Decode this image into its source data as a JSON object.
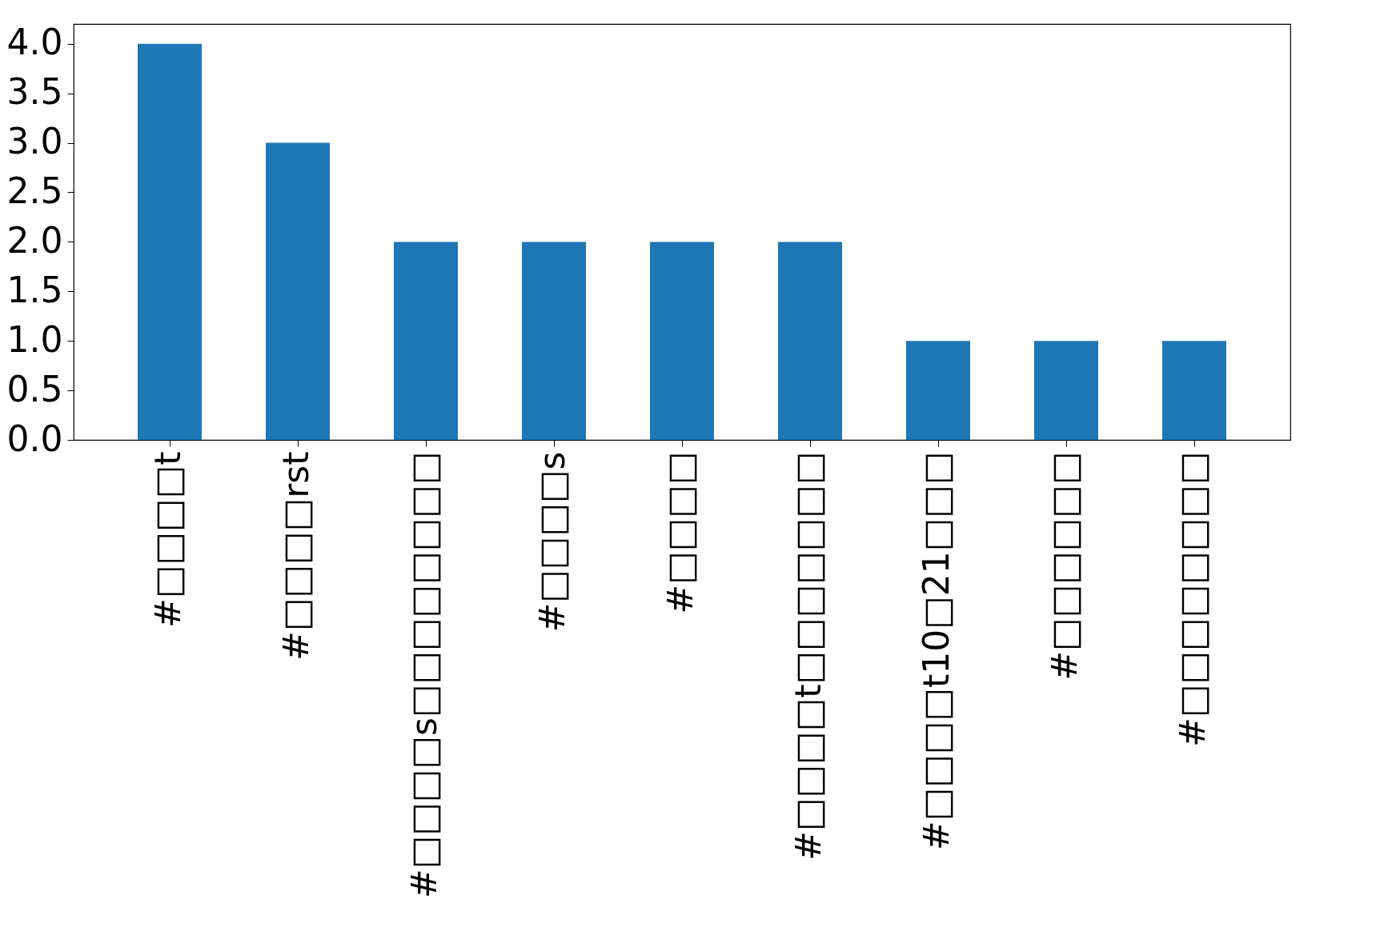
{
  "chart_data": {
    "type": "bar",
    "categories": [
      "#□□□□t",
      "#□□□□rst",
      "#□□□□s□□□□□□□□",
      "#□□□□s",
      "#□□□□",
      "#□□□□t□□□□□□□",
      "#□□□□t10□21□□□",
      "#□□□□□□",
      "#□□□□□□□□"
    ],
    "values": [
      4,
      3,
      2,
      2,
      2,
      2,
      1,
      1,
      1
    ],
    "color": "#1f77b4",
    "ylim": [
      0,
      4.2
    ],
    "yticks": [
      {
        "value": 0,
        "label": "0.0"
      },
      {
        "value": 0.5,
        "label": "0.5"
      },
      {
        "value": 1,
        "label": "1.0"
      },
      {
        "value": 1.5,
        "label": "1.5"
      },
      {
        "value": 2,
        "label": "2.0"
      },
      {
        "value": 2.5,
        "label": "2.5"
      },
      {
        "value": 3,
        "label": "3.0"
      },
      {
        "value": 3.5,
        "label": "3.5"
      },
      {
        "value": 4,
        "label": "4.0"
      }
    ],
    "grid": false
  }
}
